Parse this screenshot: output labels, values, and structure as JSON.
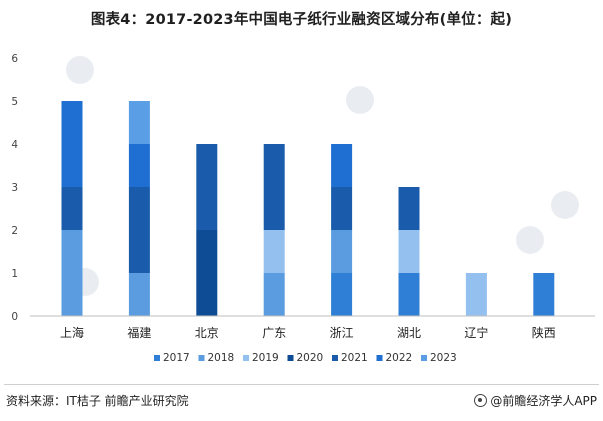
{
  "title": "图表4：2017-2023年中国电子纸行业融资区域分布(单位：起)",
  "source": "资料来源：IT桔子 前瞻产业研究院",
  "brand": "@前瞻经济学人APP",
  "colors": {
    "2017": "#2f7fd6",
    "2018": "#5b9be0",
    "2019": "#94c0ef",
    "2020": "#0f4c96",
    "2021": "#1a5cab",
    "2022": "#1f6fd2",
    "2023": "#5a9ee6"
  },
  "chart_data": {
    "type": "bar",
    "stacked": true,
    "title": "图表4：2017-2023年中国电子纸行业融资区域分布(单位：起)",
    "xlabel": "",
    "ylabel": "",
    "ylim": [
      0,
      6
    ],
    "yticks": [
      0,
      1,
      2,
      3,
      4,
      5,
      6
    ],
    "grid": false,
    "legend_position": "bottom",
    "categories": [
      "上海",
      "福建",
      "北京",
      "广东",
      "浙江",
      "湖北",
      "辽宁",
      "陕西"
    ],
    "series": [
      {
        "name": "2017",
        "values": [
          0,
          0,
          0,
          0,
          1,
          1,
          0,
          1
        ]
      },
      {
        "name": "2018",
        "values": [
          2,
          1,
          0,
          1,
          1,
          0,
          0,
          0
        ]
      },
      {
        "name": "2019",
        "values": [
          0,
          0,
          0,
          1,
          0,
          1,
          1,
          0
        ]
      },
      {
        "name": "2020",
        "values": [
          0,
          0,
          2,
          0,
          0,
          0,
          0,
          0
        ]
      },
      {
        "name": "2021",
        "values": [
          1,
          2,
          2,
          2,
          1,
          1,
          0,
          0
        ]
      },
      {
        "name": "2022",
        "values": [
          2,
          1,
          0,
          0,
          1,
          0,
          0,
          0
        ]
      },
      {
        "name": "2023",
        "values": [
          0,
          1,
          0,
          0,
          0,
          0,
          0,
          0
        ]
      }
    ]
  }
}
